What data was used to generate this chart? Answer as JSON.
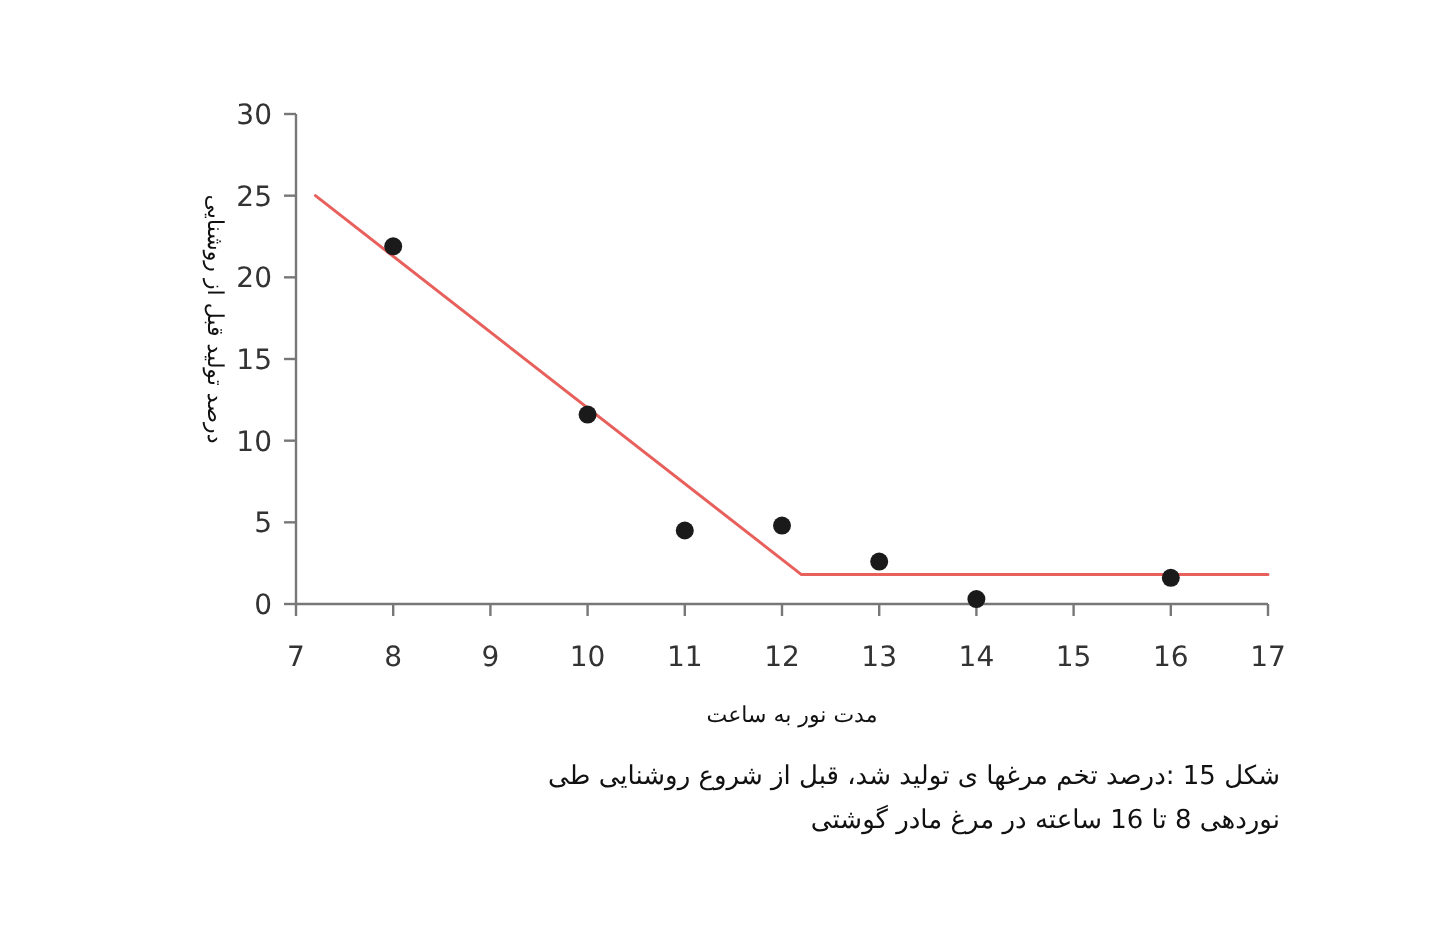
{
  "chart_data": {
    "type": "scatter",
    "xlabel": "مدت نور به ساعت",
    "ylabel": "درصد تولید قبل از روشنایی",
    "annotations": [
      "شکل 15 :درصد تخم مرغها ی تولید شد، قبل از شروع روشنایی طی نوردهی 8 تا 16 ساعته در مرغ مادر گوشتی"
    ],
    "xlim": [
      7,
      17
    ],
    "xticks": [
      7,
      8,
      9,
      10,
      11,
      12,
      13,
      14,
      15,
      16,
      17
    ],
    "ylim": [
      0,
      30
    ],
    "yticks": [
      0,
      5,
      10,
      15,
      20,
      25,
      30
    ],
    "grid": false,
    "series": [
      {
        "color": "#1a1a1a",
        "marker": "circle",
        "x": [
          8,
          10,
          11,
          12,
          13,
          14,
          16
        ],
        "values": [
          21.9,
          11.6,
          4.5,
          4.8,
          2.6,
          0.3,
          1.6
        ]
      },
      {
        "type": "line",
        "color": "#e8605c",
        "marker": "none",
        "line_style": "solid",
        "x": [
          7.2,
          12.2,
          17
        ],
        "values": [
          25,
          1.8,
          1.8
        ]
      }
    ]
  }
}
